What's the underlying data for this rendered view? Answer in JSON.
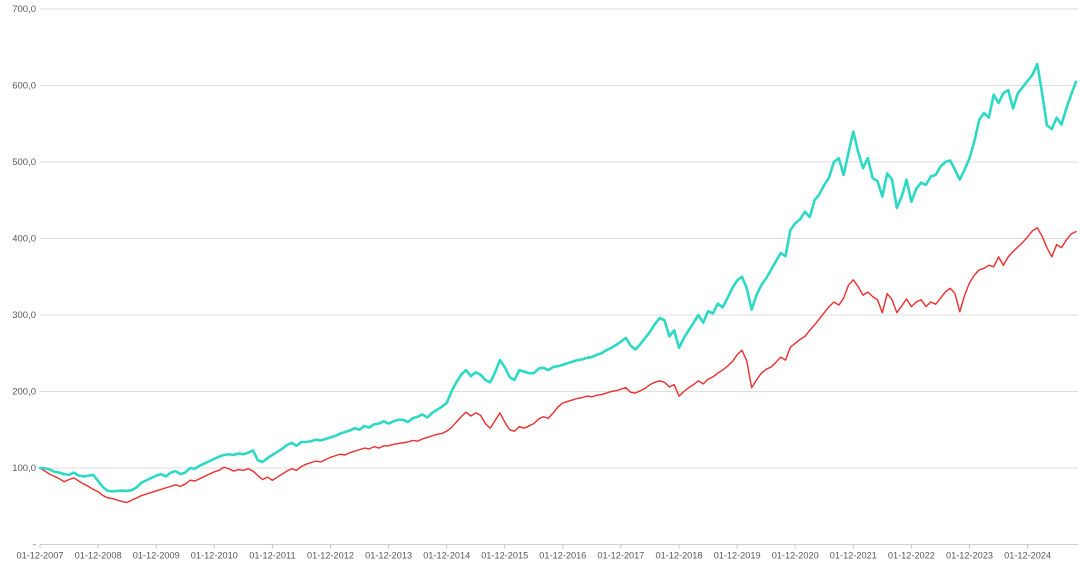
{
  "chart_data": {
    "type": "line",
    "title": "",
    "xlabel": "",
    "ylabel": "",
    "ylim": [
      0,
      700
    ],
    "grid": "horizontal",
    "legend": "none",
    "x_tick_labels": [
      "01-12-2007",
      "01-12-2008",
      "01-12-2009",
      "01-12-2010",
      "01-12-2011",
      "01-12-2012",
      "01-12-2013",
      "01-12-2014",
      "01-12-2015",
      "01-12-2016",
      "01-12-2017",
      "01-12-2018",
      "01-12-2019",
      "01-12-2020",
      "01-12-2021",
      "01-12-2022",
      "01-12-2023",
      "01-12-2024"
    ],
    "x_tick_every_n_points": 12,
    "y_tick_values": [
      0,
      100,
      200,
      300,
      400,
      500,
      600,
      700
    ],
    "y_tick_labels": [
      "-",
      "100,0",
      "200,0",
      "300,0",
      "400,0",
      "500,0",
      "600,0",
      "700,0"
    ],
    "series": [
      {
        "name": "red-index-series",
        "color": "#ed2d2d",
        "stroke_width": 1.4,
        "start_value": 100,
        "end_value": 409,
        "values": [
          100,
          96,
          92,
          89,
          86,
          82,
          85,
          87,
          83,
          79,
          76,
          72,
          69,
          64,
          61,
          60,
          58,
          56,
          55,
          58,
          61,
          64,
          66,
          68,
          70,
          72,
          74,
          76,
          78,
          76,
          79,
          84,
          83,
          86,
          89,
          92,
          95,
          97,
          101,
          99,
          96,
          98,
          97,
          99,
          96,
          90,
          85,
          88,
          84,
          88,
          92,
          96,
          99,
          97,
          102,
          105,
          107,
          109,
          108,
          111,
          114,
          116,
          118,
          117,
          120,
          122,
          124,
          126,
          125,
          128,
          126,
          129,
          129,
          131,
          132,
          133,
          134,
          136,
          135,
          138,
          140,
          142,
          144,
          145,
          148,
          153,
          160,
          167,
          173,
          168,
          172,
          169,
          158,
          152,
          162,
          172,
          160,
          150,
          148,
          154,
          152,
          155,
          158,
          164,
          167,
          165,
          172,
          180,
          185,
          187,
          189,
          191,
          192,
          194,
          193,
          195,
          196,
          198,
          200,
          201,
          203,
          205,
          199,
          198,
          201,
          204,
          209,
          212,
          214,
          212,
          206,
          209,
          194,
          200,
          205,
          209,
          214,
          210,
          216,
          219,
          224,
          228,
          233,
          239,
          248,
          254,
          240,
          205,
          215,
          224,
          229,
          232,
          238,
          245,
          241,
          258,
          263,
          268,
          272,
          280,
          287,
          295,
          303,
          311,
          317,
          313,
          322,
          339,
          346,
          337,
          326,
          330,
          324,
          320,
          303,
          328,
          320,
          303,
          312,
          321,
          311,
          317,
          320,
          311,
          317,
          314,
          322,
          330,
          335,
          328,
          304,
          326,
          342,
          352,
          359,
          361,
          365,
          363,
          376,
          365,
          376,
          383,
          389,
          395,
          402,
          410,
          414,
          403,
          388,
          376,
          392,
          388,
          398,
          406,
          409
        ]
      },
      {
        "name": "turquoise-index-series",
        "color": "#2ed9c4",
        "stroke_width": 2.6,
        "start_value": 100,
        "end_value": 605,
        "values": [
          100,
          99.5,
          98,
          95,
          94,
          92,
          91,
          94,
          90,
          89,
          90,
          91,
          83,
          75,
          70,
          69.5,
          70,
          70.5,
          70,
          71,
          75,
          81,
          84,
          87,
          90,
          92,
          89,
          94,
          96,
          92,
          94,
          100,
          99,
          103,
          106,
          109,
          112,
          115,
          117,
          118,
          117,
          119,
          118,
          120,
          123,
          110,
          108,
          113,
          117,
          121,
          125,
          130,
          133,
          129,
          134,
          134,
          135,
          137,
          136,
          138,
          140,
          142,
          145,
          147,
          149,
          152,
          150,
          155,
          153,
          157,
          158,
          161,
          158,
          161,
          163,
          163,
          160,
          165,
          167,
          170,
          166,
          172,
          176,
          180,
          185,
          200,
          212,
          222,
          228,
          220,
          225,
          222,
          215,
          212,
          225,
          241,
          232,
          219,
          215,
          228,
          226,
          224,
          224,
          230,
          231,
          228,
          232,
          233,
          235,
          237,
          239,
          241,
          242,
          244,
          245,
          248,
          250,
          254,
          257,
          261,
          265,
          270,
          260,
          255,
          262,
          270,
          278,
          288,
          296,
          293,
          272,
          280,
          257,
          270,
          280,
          290,
          300,
          290,
          305,
          302,
          315,
          310,
          322,
          335,
          345,
          350,
          335,
          307,
          326,
          339,
          348,
          359,
          370,
          381,
          377,
          411,
          420,
          425,
          435,
          428,
          450,
          458,
          470,
          480,
          500,
          505,
          483,
          512,
          540,
          513,
          492,
          505,
          479,
          475,
          455,
          485,
          477,
          440,
          455,
          477,
          448,
          465,
          473,
          470,
          481,
          483,
          494,
          500,
          502,
          490,
          477,
          490,
          505,
          527,
          555,
          564,
          558,
          588,
          577,
          590,
          594,
          570,
          590,
          598,
          606,
          614,
          628,
          590,
          548,
          543,
          558,
          549,
          570,
          588,
          605
        ]
      }
    ],
    "colors": {
      "background": "#ffffff",
      "gridline": "#dedede",
      "axis_line": "#d0d0d0",
      "tick_mark": "#c4c4c4",
      "tick_label": "#585858"
    }
  }
}
